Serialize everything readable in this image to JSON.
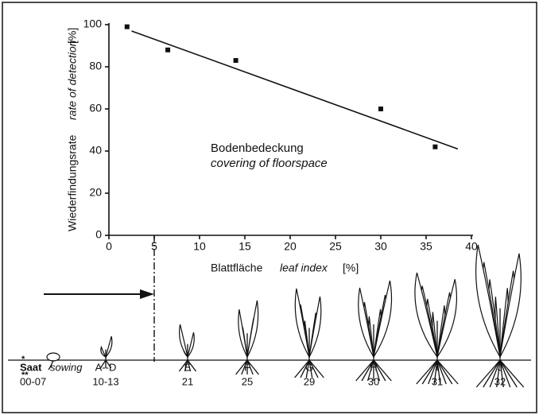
{
  "chart_data": {
    "type": "scatter",
    "x": [
      2,
      6.5,
      14,
      30,
      36
    ],
    "values": [
      99,
      88,
      83,
      60,
      42
    ],
    "color": "#111111",
    "trend_line": {
      "x": [
        2.5,
        38.5
      ],
      "y": [
        97,
        41
      ]
    },
    "xlim": [
      0,
      40
    ],
    "xticks": [
      0,
      5,
      10,
      15,
      20,
      25,
      30,
      35,
      40
    ],
    "ylim": [
      0,
      100
    ],
    "yticks": [
      0,
      20,
      40,
      60,
      80,
      100
    ],
    "x_label": {
      "de": "Blattfläche",
      "en": "leaf index",
      "unit": "[%]"
    },
    "y_label": {
      "de": "Wiederfindungsrate",
      "en": "rate of detection",
      "unit": "[%]"
    },
    "annotation": {
      "de": "Bodenbedeckung",
      "en": "covering of floorspace"
    },
    "threshold_x": 5,
    "stages": [
      {
        "label": "Saat",
        "label_en": "sowing",
        "code": "00-07",
        "marks": [
          "*",
          "**"
        ]
      },
      {
        "label": "A--D",
        "code": "10-13"
      },
      {
        "label": "E",
        "code": "21"
      },
      {
        "label": "F",
        "code": "25"
      },
      {
        "label": "G",
        "code": "29"
      },
      {
        "label": "H",
        "code": "30"
      },
      {
        "label": "I",
        "code": "31"
      },
      {
        "label": "J",
        "code": "32"
      }
    ]
  }
}
